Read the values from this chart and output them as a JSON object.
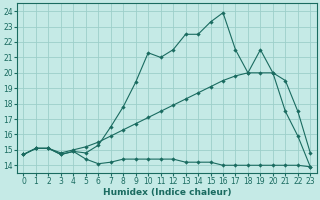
{
  "background_color": "#c5eae6",
  "grid_color": "#9dcfca",
  "line_color": "#1a6b60",
  "xlabel": "Humidex (Indice chaleur)",
  "xlim": [
    -0.5,
    23.5
  ],
  "ylim": [
    13.5,
    24.5
  ],
  "xticks": [
    0,
    1,
    2,
    3,
    4,
    5,
    6,
    7,
    8,
    9,
    10,
    11,
    12,
    13,
    14,
    15,
    16,
    17,
    18,
    19,
    20,
    21,
    22,
    23
  ],
  "yticks": [
    14,
    15,
    16,
    17,
    18,
    19,
    20,
    21,
    22,
    23,
    24
  ],
  "line_flat": {
    "x": [
      0,
      1,
      2,
      3,
      4,
      5,
      6,
      7,
      8,
      9,
      10,
      11,
      12,
      13,
      14,
      15,
      16,
      17,
      18,
      19,
      20,
      21,
      22,
      23
    ],
    "y": [
      14.7,
      15.1,
      15.1,
      14.7,
      14.9,
      14.4,
      14.1,
      14.2,
      14.4,
      14.4,
      14.4,
      14.4,
      14.4,
      14.2,
      14.2,
      14.2,
      14.0,
      14.0,
      14.0,
      14.0,
      14.0,
      14.0,
      14.0,
      13.9
    ]
  },
  "line_linear": {
    "x": [
      0,
      1,
      2,
      3,
      4,
      5,
      6,
      7,
      8,
      9,
      10,
      11,
      12,
      13,
      14,
      15,
      16,
      17,
      18,
      19,
      20,
      21,
      22,
      23
    ],
    "y": [
      14.7,
      15.1,
      15.1,
      14.8,
      15.0,
      15.2,
      15.5,
      15.9,
      16.3,
      16.7,
      17.1,
      17.5,
      17.9,
      18.3,
      18.7,
      19.1,
      19.5,
      19.8,
      20.0,
      20.0,
      20.0,
      19.5,
      17.5,
      14.8
    ]
  },
  "line_jagged": {
    "x": [
      0,
      1,
      2,
      3,
      4,
      5,
      6,
      7,
      8,
      9,
      10,
      11,
      12,
      13,
      14,
      15,
      16,
      17,
      18,
      19,
      20,
      21,
      22,
      23
    ],
    "y": [
      14.7,
      15.1,
      15.1,
      14.7,
      14.9,
      14.8,
      15.3,
      16.5,
      17.8,
      19.4,
      21.3,
      21.0,
      21.5,
      22.5,
      22.5,
      23.3,
      23.9,
      21.5,
      20.0,
      21.5,
      20.0,
      17.5,
      15.9,
      13.9
    ]
  }
}
